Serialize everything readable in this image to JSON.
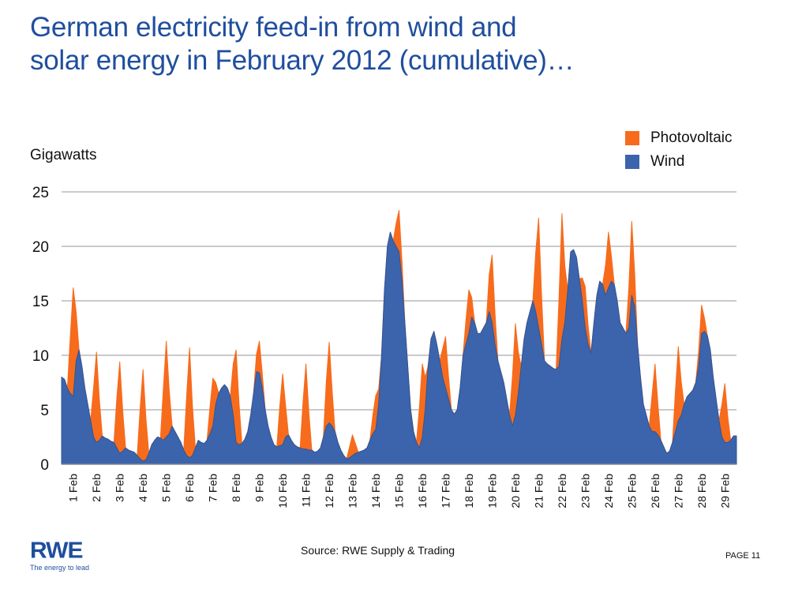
{
  "title": {
    "line1": "German electricity feed-in from wind and",
    "line2": "solar energy in February 2012 (cumulative)…"
  },
  "footer": {
    "source": "Source: RWE Supply & Trading",
    "page": "PAGE 11",
    "logo_text": "RWE",
    "logo_tagline": "The energy to lead"
  },
  "chart_data": {
    "type": "area",
    "stacked": true,
    "title": "German electricity feed-in from wind and solar energy in February 2012 (cumulative)…",
    "xlabel": "",
    "ylabel": "Gigawatts",
    "ylim": [
      0,
      25
    ],
    "yticks": [
      0,
      5,
      10,
      15,
      20,
      25
    ],
    "grid": true,
    "legend_position": "top-right",
    "sampling": "3-hourly (00,03,06,09,12,15,18,21 h), 8 values per day",
    "categories": [
      "1 Feb",
      "2 Feb",
      "3 Feb",
      "4 Feb",
      "5 Feb",
      "6 Feb",
      "7 Feb",
      "8 Feb",
      "9 Feb",
      "10 Feb",
      "11 Feb",
      "12 Feb",
      "13 Feb",
      "14 Feb",
      "15 Feb",
      "16 Feb",
      "17 Feb",
      "18 Feb",
      "19 Feb",
      "20 Feb",
      "21 Feb",
      "22 Feb",
      "23 Feb",
      "24 Feb",
      "25 Feb",
      "26 Feb",
      "27 Feb",
      "28 Feb",
      "29 Feb"
    ],
    "series": [
      {
        "name": "Wind",
        "color": "#3b64ad",
        "values": [
          [
            8,
            7.8,
            7,
            6.5,
            6.2,
            9.5,
            10.5,
            9
          ],
          [
            7,
            5.5,
            4,
            2.5,
            2,
            2.2,
            2.6,
            2.4
          ],
          [
            2.3,
            2.1,
            2,
            1.5,
            1,
            1.2,
            1.5,
            1.3
          ],
          [
            1.2,
            1.1,
            0.8,
            0.5,
            0.3,
            0.4,
            1,
            1.8
          ],
          [
            2.2,
            2.5,
            2.4,
            2.2,
            2.5,
            2.8,
            3.5,
            3
          ],
          [
            2.5,
            2,
            1.3,
            0.8,
            0.6,
            0.8,
            1.5,
            2.2
          ],
          [
            2,
            1.9,
            2.2,
            2.8,
            3.5,
            5.5,
            6.5,
            7
          ],
          [
            7.3,
            7,
            6.2,
            4.5,
            2,
            1.8,
            1.9,
            2.3
          ],
          [
            3,
            4.5,
            6.5,
            8.5,
            8.4,
            7,
            5,
            3.5
          ],
          [
            2.5,
            1.8,
            1.6,
            1.7,
            1.8,
            2.5,
            2.7,
            2.2
          ],
          [
            1.8,
            1.6,
            1.5,
            1.4,
            1.4,
            1.3,
            1.3,
            1.1
          ],
          [
            1.2,
            1.5,
            2.5,
            3.5,
            3.8,
            3.5,
            3,
            2
          ],
          [
            1.3,
            0.8,
            0.5,
            0.6,
            0.8,
            1,
            1.1,
            1.2
          ],
          [
            1.3,
            1.5,
            2.2,
            2.8,
            3.2,
            5.5,
            10,
            16
          ],
          [
            20,
            21.3,
            20.5,
            20,
            19.5,
            17,
            13,
            9
          ],
          [
            5,
            3,
            2,
            1.5,
            2.5,
            5,
            9,
            11.5
          ],
          [
            12.2,
            11,
            9.5,
            8,
            7,
            6,
            5,
            4.6
          ],
          [
            5,
            7,
            10,
            11,
            12,
            13.5,
            13,
            12
          ],
          [
            12,
            12.5,
            13,
            14,
            13,
            11,
            9.5,
            8.5
          ],
          [
            7.5,
            6,
            4.5,
            3.5,
            4.5,
            6.5,
            9,
            11.5
          ],
          [
            13,
            14,
            15,
            14,
            12.5,
            11,
            9.5,
            9.2
          ],
          [
            9,
            8.8,
            8.7,
            9,
            11.5,
            13,
            16,
            19.5
          ],
          [
            19.7,
            19,
            17,
            15,
            12.5,
            11,
            10.2,
            13
          ],
          [
            15.5,
            16.8,
            16.5,
            15.5,
            16.2,
            16.8,
            16.5,
            15
          ],
          [
            13,
            12.5,
            12,
            12.5,
            15.5,
            14.5,
            11,
            8
          ],
          [
            5.5,
            4.5,
            3.5,
            3,
            3,
            2.7,
            2.2,
            1.6
          ],
          [
            1,
            1.2,
            2,
            3,
            4,
            4.5,
            5.5,
            6.2
          ],
          [
            6.5,
            6.8,
            7.5,
            9,
            12,
            12.2,
            11.8,
            10.5
          ],
          [
            8,
            6,
            4,
            2.5,
            2,
            2,
            2.2,
            2.6
          ]
        ]
      },
      {
        "name": "Photovoltaic",
        "color": "#f76b1c",
        "values": [
          [
            0,
            0,
            0,
            5.2,
            10,
            4.5,
            0,
            0
          ],
          [
            0,
            0,
            0,
            4.5,
            8.3,
            3.7,
            0,
            0
          ],
          [
            0,
            0,
            0,
            4.6,
            8.4,
            3.8,
            0,
            0
          ],
          [
            0,
            0,
            0,
            4.6,
            8.4,
            3.8,
            0,
            0
          ],
          [
            0,
            0,
            0,
            4.8,
            8.8,
            4,
            0,
            0
          ],
          [
            0,
            0,
            0,
            5.5,
            10.1,
            4.5,
            0,
            0
          ],
          [
            0,
            0,
            0,
            2.4,
            4.4,
            2,
            0,
            0
          ],
          [
            0,
            0,
            0,
            4.7,
            8.5,
            3.8,
            0,
            0
          ],
          [
            0,
            0,
            0,
            1.6,
            2.9,
            1.3,
            0,
            0
          ],
          [
            0,
            0,
            0,
            3.6,
            6.5,
            2.9,
            0,
            0
          ],
          [
            0,
            0,
            0,
            4.3,
            7.8,
            3.5,
            0,
            0
          ],
          [
            0,
            0,
            0,
            4.1,
            7.4,
            3.3,
            0,
            0
          ],
          [
            0,
            0,
            0,
            1,
            1.9,
            0.9,
            0,
            0
          ],
          [
            0,
            0,
            0,
            1.7,
            3.1,
            1.4,
            0,
            0
          ],
          [
            0,
            0,
            0,
            2.1,
            3.8,
            1.7,
            0,
            0
          ],
          [
            0,
            0,
            0,
            3.7,
            6.7,
            3,
            0,
            0
          ],
          [
            0,
            0,
            0,
            2.6,
            4.7,
            2.1,
            0,
            0
          ],
          [
            0,
            0,
            0,
            2.2,
            4,
            1.8,
            0,
            0
          ],
          [
            0,
            0,
            0,
            3.4,
            6.2,
            2.8,
            0,
            0
          ],
          [
            0,
            0,
            0,
            4.6,
            8.4,
            3.8,
            0,
            0
          ],
          [
            0,
            0,
            0,
            5.5,
            10.1,
            4.5,
            0,
            0
          ],
          [
            0,
            0,
            0,
            6.3,
            11.5,
            5.2,
            0,
            0
          ],
          [
            0,
            0,
            0,
            2.1,
            3.8,
            1.7,
            0,
            0
          ],
          [
            0,
            0,
            0,
            2.8,
            5.1,
            2.3,
            0,
            0
          ],
          [
            0,
            0,
            0,
            3.7,
            6.8,
            3.1,
            0,
            0
          ],
          [
            0,
            0,
            0,
            3.4,
            6.2,
            2.8,
            0,
            0
          ],
          [
            0,
            0,
            0,
            3.7,
            6.8,
            3.1,
            0,
            0
          ],
          [
            0,
            0,
            0,
            1.4,
            2.6,
            1.2,
            0,
            0
          ],
          [
            0,
            0,
            0,
            3,
            5.4,
            2.4,
            0,
            0
          ]
        ]
      }
    ]
  }
}
